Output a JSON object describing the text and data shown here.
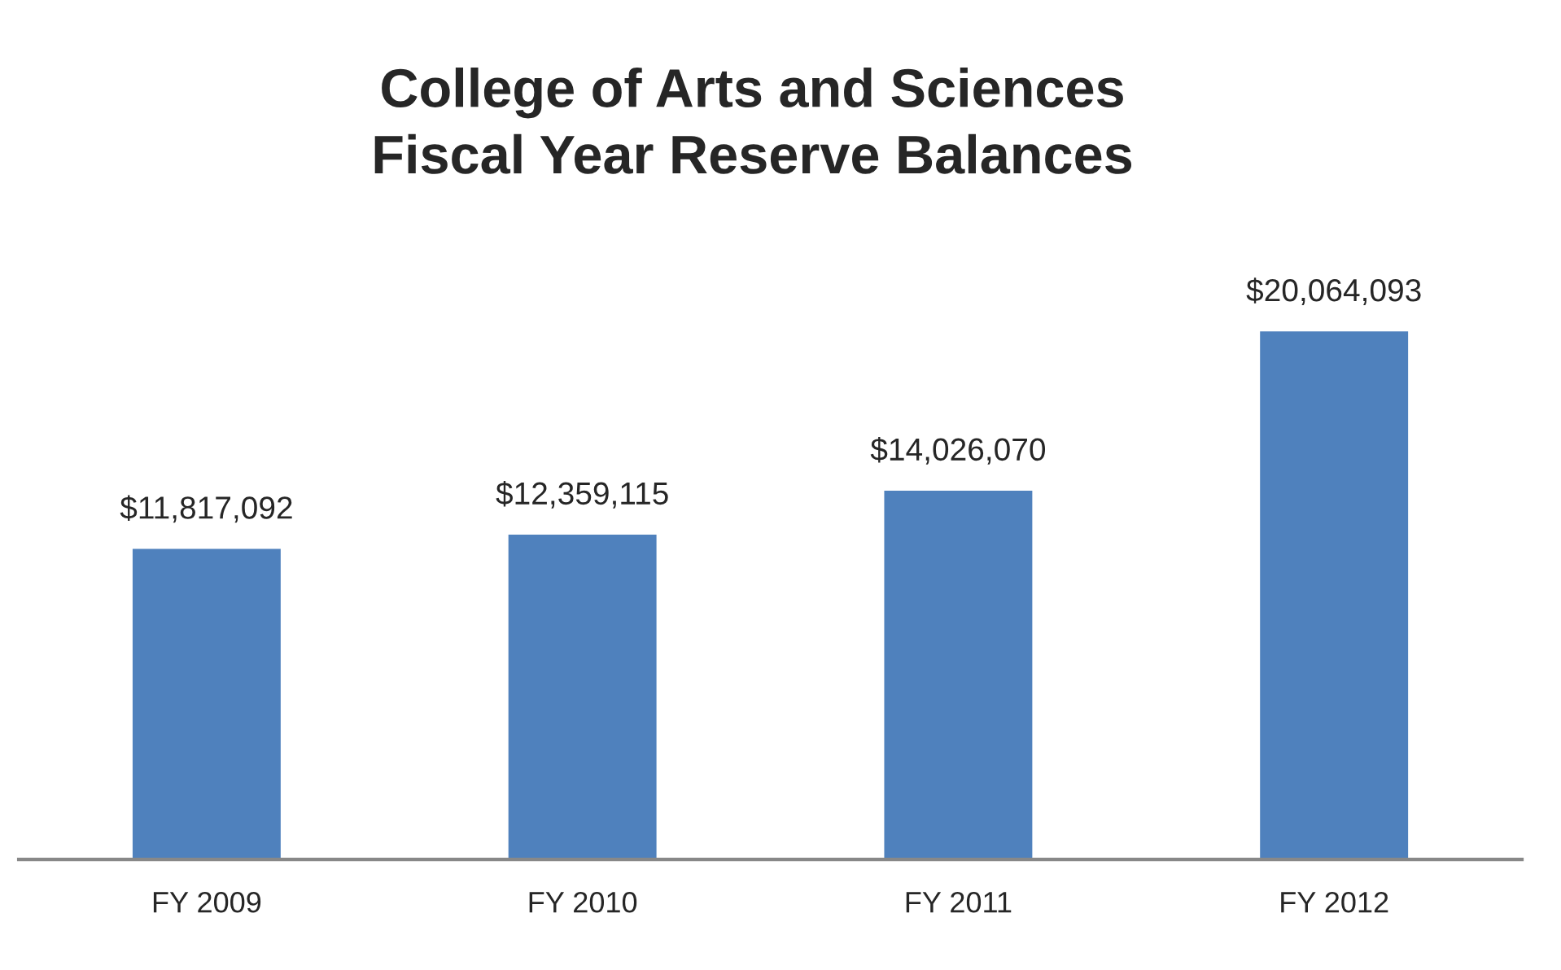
{
  "chart_data": {
    "type": "bar",
    "title": "College of Arts and Sciences\nFiscal Year Reserve Balances",
    "categories": [
      "FY 2009",
      "FY 2010",
      "FY 2011",
      "FY 2012"
    ],
    "values": [
      11817092,
      12359115,
      14026070,
      20064093
    ],
    "value_labels": [
      "$11,817,092",
      "$12,359,115",
      "$14,026,070",
      "$20,064,093"
    ],
    "color": "#4f81bd",
    "grid": false,
    "legend": false
  }
}
